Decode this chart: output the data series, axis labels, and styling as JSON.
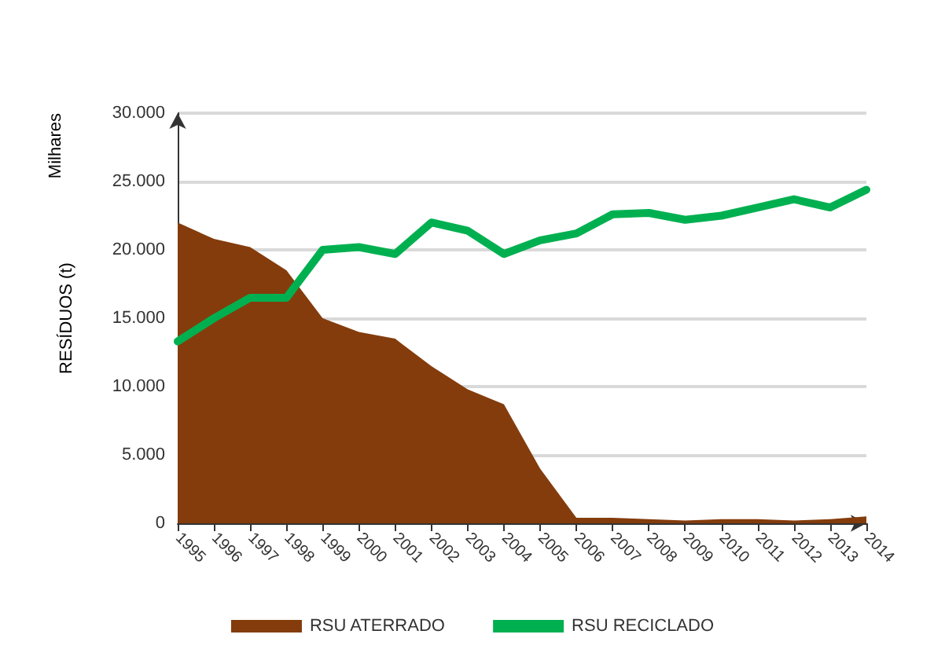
{
  "chart_data": {
    "type": "area",
    "ylabel": "RESÍDUOS (t)",
    "annotations": [
      "Milhares"
    ],
    "categories": [
      "1995",
      "1996",
      "1997",
      "1998",
      "1999",
      "2000",
      "2001",
      "2002",
      "2003",
      "2004",
      "2005",
      "2006",
      "2007",
      "2008",
      "2009",
      "2010",
      "2011",
      "2012",
      "2013",
      "2014"
    ],
    "series": [
      {
        "name": "RSU ATERRADO",
        "color": "#843c0c",
        "values": [
          22000,
          20800,
          20200,
          18500,
          15000,
          14000,
          13500,
          11500,
          9800,
          8700,
          4000,
          400,
          400,
          300,
          200,
          300,
          300,
          200,
          300,
          500
        ]
      },
      {
        "name": "RSU RECICLADO",
        "type": "line",
        "color": "#00b050",
        "values": [
          13300,
          15000,
          16500,
          16500,
          20000,
          20200,
          19700,
          22000,
          21400,
          19700,
          20700,
          21200,
          22600,
          22700,
          22200,
          22500,
          23100,
          23700,
          23100,
          24400
        ]
      }
    ],
    "ylim": [
      0,
      30000
    ],
    "yticks": [
      0,
      {
        "value": 5000,
        "label": "5.000"
      },
      {
        "value": 10000,
        "label": "10.000"
      },
      {
        "value": 15000,
        "label": "15.000"
      },
      {
        "value": 20000,
        "label": "20.000"
      },
      {
        "value": 25000,
        "label": "25.000"
      },
      {
        "value": 30000,
        "label": "30.000"
      }
    ],
    "grid": "y",
    "legend": "bottom",
    "marker": "none"
  }
}
